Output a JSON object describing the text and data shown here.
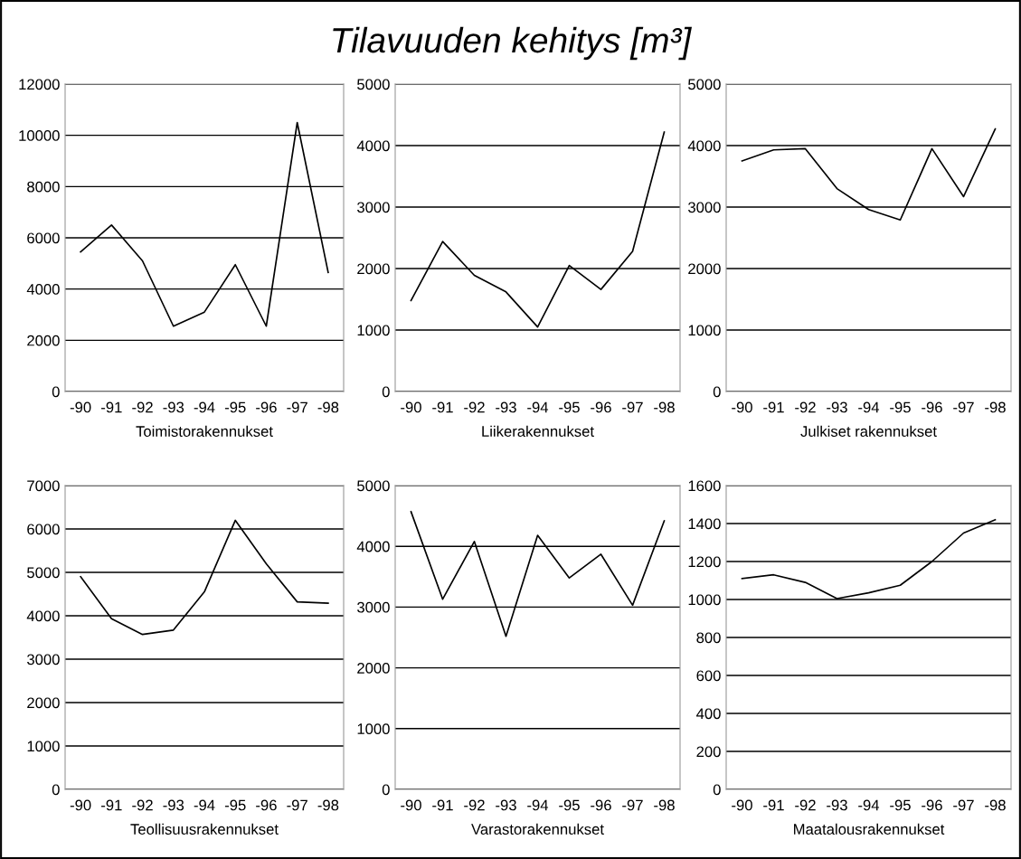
{
  "chart_data": [
    {
      "type": "other",
      "title": "Tilavuuden kehitys [m³]"
    },
    {
      "type": "line",
      "xlabel": "Toimistorakennukset",
      "categories": [
        "-90",
        "-91",
        "-92",
        "-93",
        "-94",
        "-95",
        "-96",
        "-97",
        "-98"
      ],
      "series": [
        {
          "color": "#000000",
          "values": [
            5450,
            6500,
            5100,
            2550,
            3100,
            4950,
            2550,
            10500,
            4650
          ]
        }
      ],
      "ylim": [
        0,
        12000
      ],
      "yticks": [
        0,
        2000,
        4000,
        6000,
        8000,
        10000,
        12000
      ],
      "grid": "y",
      "legend": false
    },
    {
      "type": "line",
      "xlabel": "Liikerakennukset",
      "categories": [
        "-90",
        "-91",
        "-92",
        "-93",
        "-94",
        "-95",
        "-96",
        "-97",
        "-98"
      ],
      "series": [
        {
          "color": "#000000",
          "values": [
            1480,
            2440,
            1890,
            1620,
            1050,
            2050,
            1660,
            2280,
            4220
          ]
        }
      ],
      "ylim": [
        0,
        5000
      ],
      "yticks": [
        0,
        1000,
        2000,
        3000,
        4000,
        5000
      ],
      "grid": "y",
      "legend": false
    },
    {
      "type": "line",
      "xlabel": "Julkiset rakennukset",
      "categories": [
        "-90",
        "-91",
        "-92",
        "-93",
        "-94",
        "-95",
        "-96",
        "-97",
        "-98"
      ],
      "series": [
        {
          "color": "#000000",
          "values": [
            3750,
            3930,
            3950,
            3300,
            2960,
            2790,
            3950,
            3170,
            4270
          ]
        }
      ],
      "ylim": [
        0,
        5000
      ],
      "yticks": [
        0,
        1000,
        2000,
        3000,
        4000,
        5000
      ],
      "grid": "y",
      "legend": false
    },
    {
      "type": "line",
      "xlabel": "Teollisuusrakennukset",
      "categories": [
        "-90",
        "-91",
        "-92",
        "-93",
        "-94",
        "-95",
        "-96",
        "-97",
        "-98"
      ],
      "series": [
        {
          "color": "#000000",
          "values": [
            4900,
            3930,
            3570,
            3670,
            4550,
            6200,
            5200,
            4320,
            4290
          ]
        }
      ],
      "ylim": [
        0,
        7000
      ],
      "yticks": [
        0,
        1000,
        2000,
        3000,
        4000,
        5000,
        6000,
        7000
      ],
      "grid": "y",
      "legend": false
    },
    {
      "type": "line",
      "xlabel": "Varastorakennukset",
      "categories": [
        "-90",
        "-91",
        "-92",
        "-93",
        "-94",
        "-95",
        "-96",
        "-97",
        "-98"
      ],
      "series": [
        {
          "color": "#000000",
          "values": [
            4570,
            3130,
            4080,
            2520,
            4180,
            3480,
            3870,
            3030,
            4420
          ]
        }
      ],
      "ylim": [
        0,
        5000
      ],
      "yticks": [
        0,
        1000,
        2000,
        3000,
        4000,
        5000
      ],
      "grid": "y",
      "legend": false
    },
    {
      "type": "line",
      "xlabel": "Maatalousrakennukset",
      "categories": [
        "-90",
        "-91",
        "-92",
        "-93",
        "-94",
        "-95",
        "-96",
        "-97",
        "-98"
      ],
      "series": [
        {
          "color": "#000000",
          "values": [
            1110,
            1130,
            1090,
            1005,
            1035,
            1075,
            1200,
            1350,
            1420
          ]
        }
      ],
      "ylim": [
        0,
        1600
      ],
      "yticks": [
        0,
        200,
        400,
        600,
        800,
        1000,
        1200,
        1400,
        1600
      ],
      "grid": "y",
      "legend": false
    }
  ]
}
